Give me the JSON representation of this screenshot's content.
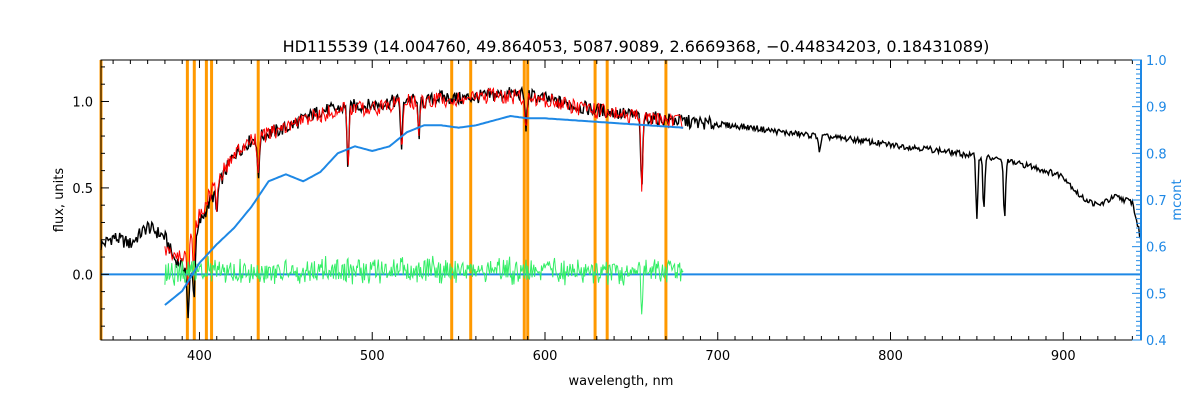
{
  "chart_data": {
    "type": "line",
    "title": "HD115539    (14.004760, 49.864053, 5087.9089, 2.6669368, −0.44834203, 0.18431089)",
    "xlabel": "wavelength, nm",
    "ylabel": "flux, units",
    "ylabel_right": "mcont",
    "xlim": [
      343,
      945
    ],
    "ylim": [
      -0.38,
      1.24
    ],
    "ylim_right": [
      0.4,
      1.0
    ],
    "x_ticks": [
      400,
      500,
      600,
      700,
      800,
      900
    ],
    "y_ticks": [
      0.0,
      0.5,
      1.0
    ],
    "y_tick_labels": [
      "0.0",
      "0.5",
      "1.0"
    ],
    "y_right_ticks": [
      0.4,
      0.5,
      0.6,
      0.7,
      0.8,
      0.9,
      1.0
    ],
    "y_right_tick_labels": [
      "0.4",
      "0.5",
      "0.6",
      "0.7",
      "0.8",
      "0.9",
      "1.0"
    ],
    "grid": false,
    "legend": "none",
    "vertical_lines": [
      343,
      393,
      397,
      404,
      407,
      434,
      546,
      557,
      588,
      590,
      629,
      636,
      670
    ],
    "series": [
      {
        "role": "observed",
        "color": "#000000",
        "x": [
          343,
          350,
          360,
          370,
          380,
          385,
          390,
          395,
          400,
          410,
          420,
          430,
          440,
          450,
          460,
          470,
          480,
          490,
          500,
          510,
          520,
          530,
          540,
          550,
          560,
          570,
          580,
          590,
          600,
          620,
          640,
          660,
          680,
          700,
          720,
          740,
          760,
          780,
          800,
          820,
          840,
          860,
          880,
          900,
          910,
          920,
          930,
          940,
          945
        ],
        "y": [
          0.17,
          0.22,
          0.18,
          0.28,
          0.22,
          0.1,
          0.05,
          0.02,
          0.3,
          0.5,
          0.7,
          0.78,
          0.82,
          0.85,
          0.9,
          0.95,
          0.96,
          0.98,
          0.98,
          1.0,
          1.02,
          1.0,
          1.03,
          1.02,
          1.03,
          1.04,
          1.05,
          1.04,
          1.02,
          0.97,
          0.94,
          0.91,
          0.89,
          0.87,
          0.85,
          0.82,
          0.8,
          0.78,
          0.75,
          0.73,
          0.7,
          0.67,
          0.63,
          0.57,
          0.45,
          0.4,
          0.45,
          0.42,
          0.2
        ]
      },
      {
        "role": "model",
        "color": "#ff0000",
        "x": [
          380,
          390,
          400,
          410,
          420,
          430,
          440,
          450,
          460,
          470,
          480,
          490,
          500,
          510,
          520,
          530,
          540,
          550,
          560,
          570,
          580,
          590,
          600,
          620,
          640,
          660,
          680
        ],
        "y": [
          0.15,
          0.1,
          0.35,
          0.55,
          0.7,
          0.78,
          0.82,
          0.86,
          0.9,
          0.93,
          0.96,
          0.97,
          0.97,
          0.99,
          1.01,
          1.0,
          1.02,
          1.02,
          1.03,
          1.04,
          1.04,
          1.03,
          1.02,
          0.97,
          0.94,
          0.91,
          0.89
        ]
      },
      {
        "role": "residuals",
        "color": "#33ee66",
        "x": [
          380,
          680
        ],
        "y": [
          0.02,
          0.02
        ]
      },
      {
        "role": "zero-line",
        "color": "#1e88e5",
        "x": [
          343,
          380,
          680,
          945
        ],
        "y": [
          0.0,
          0.0,
          0.0,
          0.0
        ]
      },
      {
        "role": "continuum",
        "axis": "right",
        "color": "#1e88e5",
        "x": [
          380,
          390,
          400,
          410,
          420,
          430,
          440,
          450,
          460,
          470,
          480,
          490,
          500,
          510,
          520,
          530,
          540,
          550,
          560,
          570,
          580,
          590,
          600,
          620,
          640,
          660,
          680
        ],
        "y": [
          0.475,
          0.505,
          0.565,
          0.605,
          0.64,
          0.685,
          0.74,
          0.755,
          0.74,
          0.76,
          0.8,
          0.815,
          0.805,
          0.815,
          0.845,
          0.86,
          0.86,
          0.855,
          0.86,
          0.87,
          0.88,
          0.875,
          0.875,
          0.87,
          0.865,
          0.86,
          0.855
        ]
      }
    ]
  },
  "colors": {
    "axis": "#000000",
    "right_axis": "#1e88e5",
    "vline": "#ff9900",
    "observed": "#000000",
    "model": "#ff0000",
    "residuals": "#33ee66",
    "continuum": "#1e88e5"
  }
}
